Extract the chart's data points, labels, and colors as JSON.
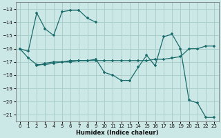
{
  "xlabel": "Humidex (Indice chaleur)",
  "bg_color": "#cce8e6",
  "grid_color": "#aacfcc",
  "line_color": "#1a6b6b",
  "xlim": [
    -0.5,
    23.5
  ],
  "ylim": [
    -21.5,
    -12.5
  ],
  "yticks": [
    -13,
    -14,
    -15,
    -16,
    -17,
    -18,
    -19,
    -20,
    -21
  ],
  "xticks": [
    0,
    1,
    2,
    3,
    4,
    5,
    6,
    7,
    8,
    9,
    10,
    11,
    12,
    13,
    14,
    15,
    16,
    17,
    18,
    19,
    20,
    21,
    22,
    23
  ],
  "series1_x": [
    0,
    1,
    2,
    3,
    4,
    5,
    6,
    7,
    8,
    9
  ],
  "series1_y": [
    -16.0,
    -16.2,
    -13.3,
    -14.5,
    -15.0,
    -13.2,
    -13.1,
    -13.1,
    -13.7,
    -14.0
  ],
  "series2_x": [
    0,
    1,
    2,
    3,
    4,
    5,
    6,
    7,
    8,
    9,
    10,
    11,
    12,
    13,
    14,
    15,
    16,
    17,
    18,
    19,
    20,
    21,
    22,
    23
  ],
  "series2_y": [
    -16.0,
    -16.7,
    -17.2,
    -17.2,
    -17.1,
    -17.0,
    -17.0,
    -16.9,
    -16.9,
    -16.9,
    -16.9,
    -16.9,
    -16.9,
    -16.9,
    -16.9,
    -16.9,
    -16.8,
    -16.8,
    -16.7,
    -16.6,
    -16.0,
    -16.0,
    -15.8,
    -15.8
  ],
  "series3_x": [
    2,
    3,
    4,
    5,
    6,
    7,
    8,
    9,
    10,
    11,
    12,
    13,
    14,
    15,
    16,
    17,
    18,
    19,
    20,
    21,
    22,
    23
  ],
  "series3_y": [
    -17.3,
    -17.1,
    -17.0,
    -17.0,
    -16.9,
    -16.9,
    -16.9,
    -16.8,
    -17.8,
    -18.0,
    -18.4,
    -18.4,
    -17.4,
    -16.5,
    -17.3,
    -15.1,
    -14.9,
    -16.0,
    -19.9,
    -20.1,
    -21.2,
    -21.2
  ]
}
